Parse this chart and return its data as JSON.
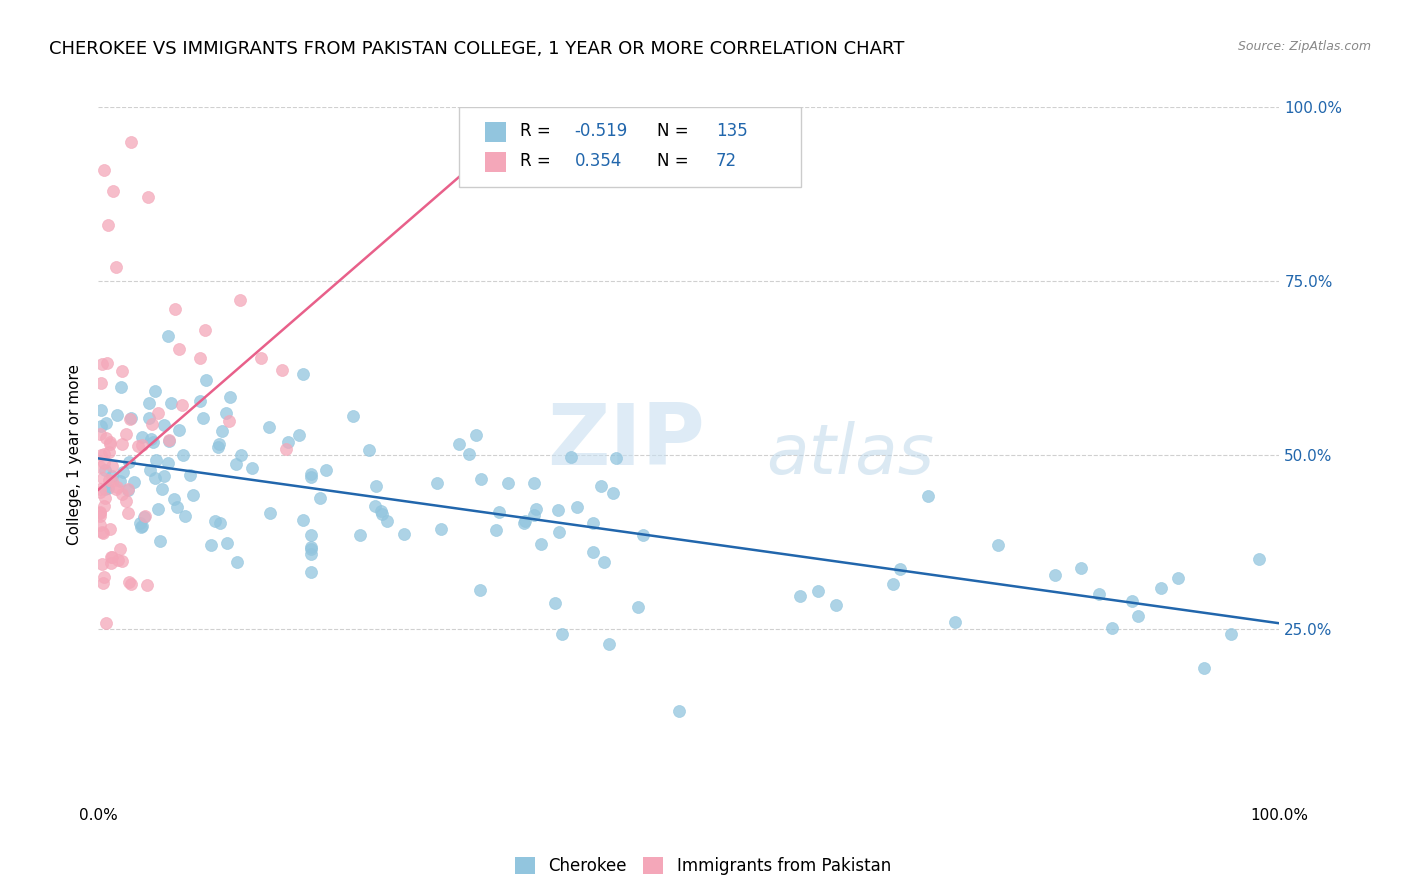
{
  "title": "CHEROKEE VS IMMIGRANTS FROM PAKISTAN COLLEGE, 1 YEAR OR MORE CORRELATION CHART",
  "source": "Source: ZipAtlas.com",
  "ylabel": "College, 1 year or more",
  "xlabel": "",
  "xlim": [
    0,
    1.0
  ],
  "ylim": [
    0,
    1.0
  ],
  "legend_label1": "Cherokee",
  "legend_label2": "Immigrants from Pakistan",
  "r1": "-0.519",
  "n1": "135",
  "r2": "0.354",
  "n2": "72",
  "blue_color": "#92c5de",
  "pink_color": "#f4a7b9",
  "blue_line_color": "#2166ac",
  "pink_line_color": "#e8608a",
  "watermark_zip": "ZIP",
  "watermark_atlas": "atlas",
  "title_fontsize": 13,
  "label_fontsize": 11,
  "tick_fontsize": 11,
  "blue_line_x0": 0.0,
  "blue_line_x1": 1.0,
  "blue_line_y0": 0.495,
  "blue_line_y1": 0.258,
  "pink_line_x0": 0.0,
  "pink_line_x1": 0.36,
  "pink_line_y0": 0.45,
  "pink_line_y1": 0.98
}
